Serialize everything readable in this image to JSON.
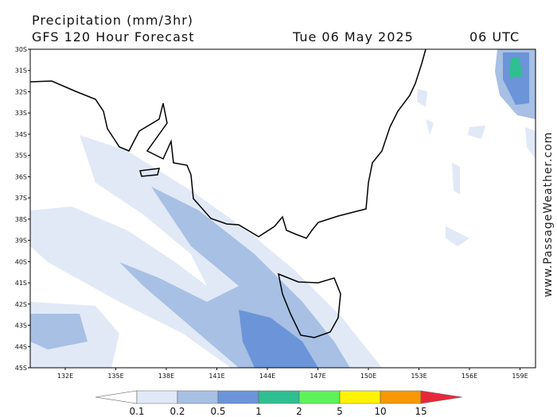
{
  "header": {
    "title": "Precipitation (mm/3hr)",
    "subtitle": "GFS 120 Hour Forecast",
    "date": "Tue 06 May 2025",
    "time": "06 UTC"
  },
  "map": {
    "lat_labels": [
      "30S",
      "31S",
      "32S",
      "33S",
      "34S",
      "35S",
      "36S",
      "37S",
      "38S",
      "39S",
      "40S",
      "41S",
      "42S",
      "43S",
      "44S",
      "45S"
    ],
    "lon_labels": [
      "132E",
      "135E",
      "138E",
      "141E",
      "144E",
      "147E",
      "150E",
      "153E",
      "156E",
      "159E"
    ]
  },
  "legend": {
    "levels": [
      "0.1",
      "0.2",
      "0.5",
      "1",
      "2",
      "5",
      "10",
      "15"
    ],
    "colors": [
      "#ffffff",
      "#e1e9f7",
      "#a7c0e4",
      "#6b95d8",
      "#2fbf90",
      "#5ef25a",
      "#fff200",
      "#f79800",
      "#e8283a"
    ]
  },
  "watermark": "www.PassageWeather.com"
}
